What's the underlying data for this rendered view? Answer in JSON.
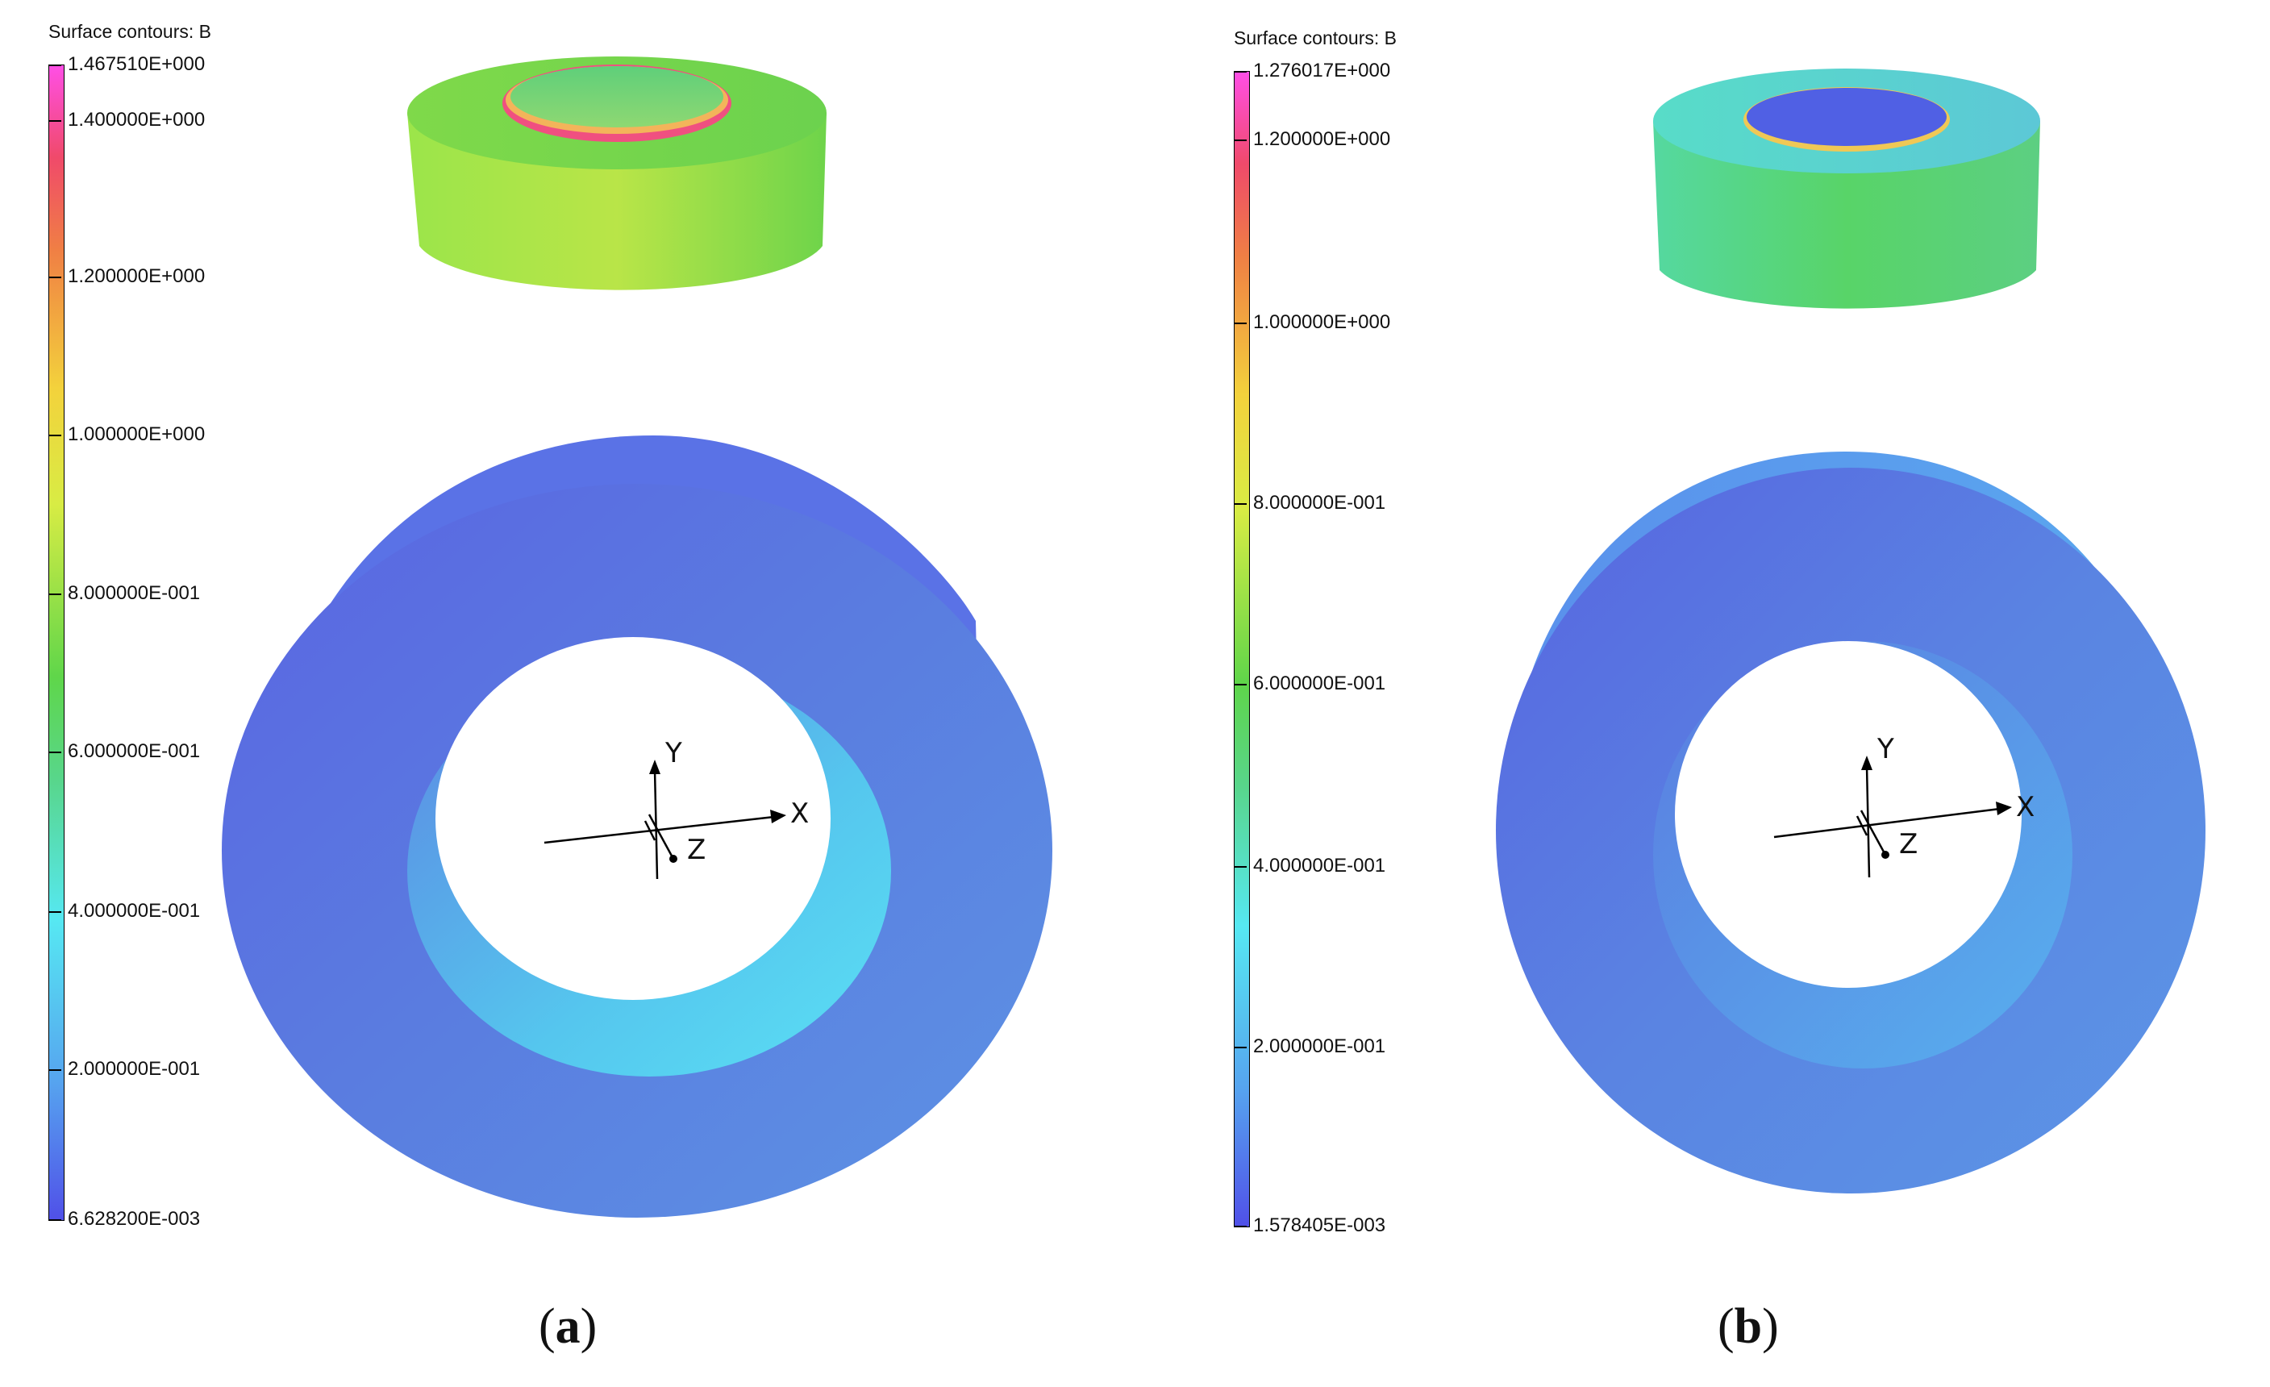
{
  "panels": [
    {
      "id": "a",
      "legend_title": "Surface contours: B",
      "ticks": [
        "1.467510E+000",
        "1.400000E+000",
        "1.200000E+000",
        "1.000000E+000",
        "8.000000E-001",
        "6.000000E-001",
        "4.000000E-001",
        "2.000000E-001",
        "6.628200E-003"
      ],
      "axes": {
        "x": "X",
        "y": "Y",
        "z": "Z"
      },
      "caption_open": "(",
      "caption_letter": "a",
      "caption_close": ")"
    },
    {
      "id": "b",
      "legend_title": "Surface contours: B",
      "ticks": [
        "1.276017E+000",
        "1.200000E+000",
        "1.000000E+000",
        "8.000000E-001",
        "6.000000E-001",
        "4.000000E-001",
        "2.000000E-001",
        "1.578405E-003"
      ],
      "axes": {
        "x": "X",
        "y": "Y",
        "z": "Z"
      },
      "caption_open": "(",
      "caption_letter": "b",
      "caption_close": ")"
    }
  ],
  "colors": {
    "magenta": "#ff4fe6",
    "red": "#f04a5a",
    "orange": "#f3a43c",
    "yellow": "#e8ec44",
    "green": "#5fd64a",
    "cyan": "#56e8f2",
    "light_blue": "#56a4ef",
    "blue": "#5050e8"
  }
}
